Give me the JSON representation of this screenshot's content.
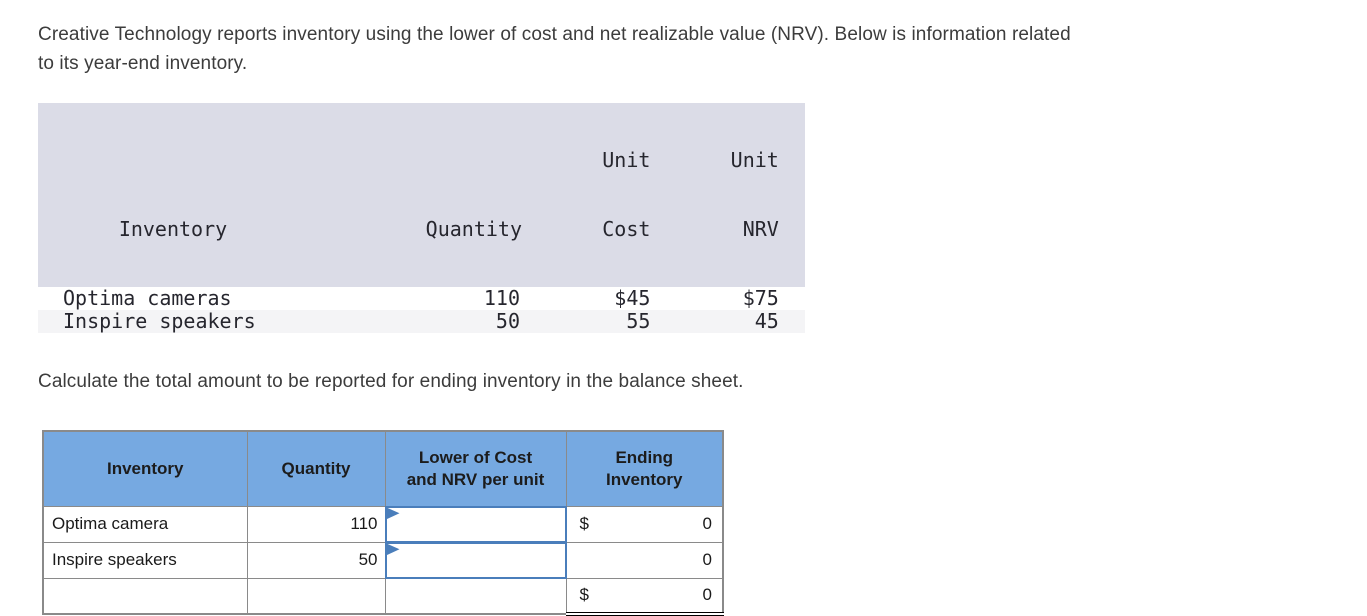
{
  "intro": {
    "line1": "Creative Technology reports inventory using the lower of cost and net realizable value (NRV). Below is information related",
    "line2": "to its year-end inventory."
  },
  "instruction": "Calculate the total amount to be reported for ending inventory in the balance sheet.",
  "colors": {
    "header_blue": "#76a9e1",
    "input_border_blue": "#4a7ebb",
    "src_header_bg": "#dbdce7",
    "src_alt_row_bg": "#f4f4f6",
    "grid_grey": "#8a8a8a"
  },
  "source_table": {
    "headers": {
      "inventory_line1": "",
      "inventory_line2": "Inventory",
      "quantity_line1": "",
      "quantity_line2": "Quantity",
      "unit_cost_line1": "Unit",
      "unit_cost_line2": "Cost",
      "unit_nrv_line1": "Unit",
      "unit_nrv_line2": "NRV"
    },
    "rows": [
      {
        "inventory": "Optima cameras",
        "quantity": "110",
        "unit_cost": "$45",
        "unit_nrv": "$75"
      },
      {
        "inventory": "Inspire speakers",
        "quantity": "50",
        "unit_cost": "55",
        "unit_nrv": "45"
      }
    ]
  },
  "answer_table": {
    "headers": {
      "inventory_line1": "Inventory",
      "inventory_line2": "",
      "quantity_line1": "Quantity",
      "quantity_line2": "",
      "lower_line1": "Lower of Cost",
      "lower_line2": "and NRV per unit",
      "ending_line1": "Ending",
      "ending_line2": "Inventory"
    },
    "rows": [
      {
        "inventory": "Optima camera",
        "quantity": "110",
        "input_value": "",
        "currency": "$",
        "ending": "0"
      },
      {
        "inventory": "Inspire speakers",
        "quantity": "50",
        "input_value": "",
        "currency": "",
        "ending": "0"
      }
    ],
    "total_row": {
      "inventory": "",
      "quantity": "",
      "lower": "",
      "currency": "$",
      "ending": "0"
    }
  }
}
